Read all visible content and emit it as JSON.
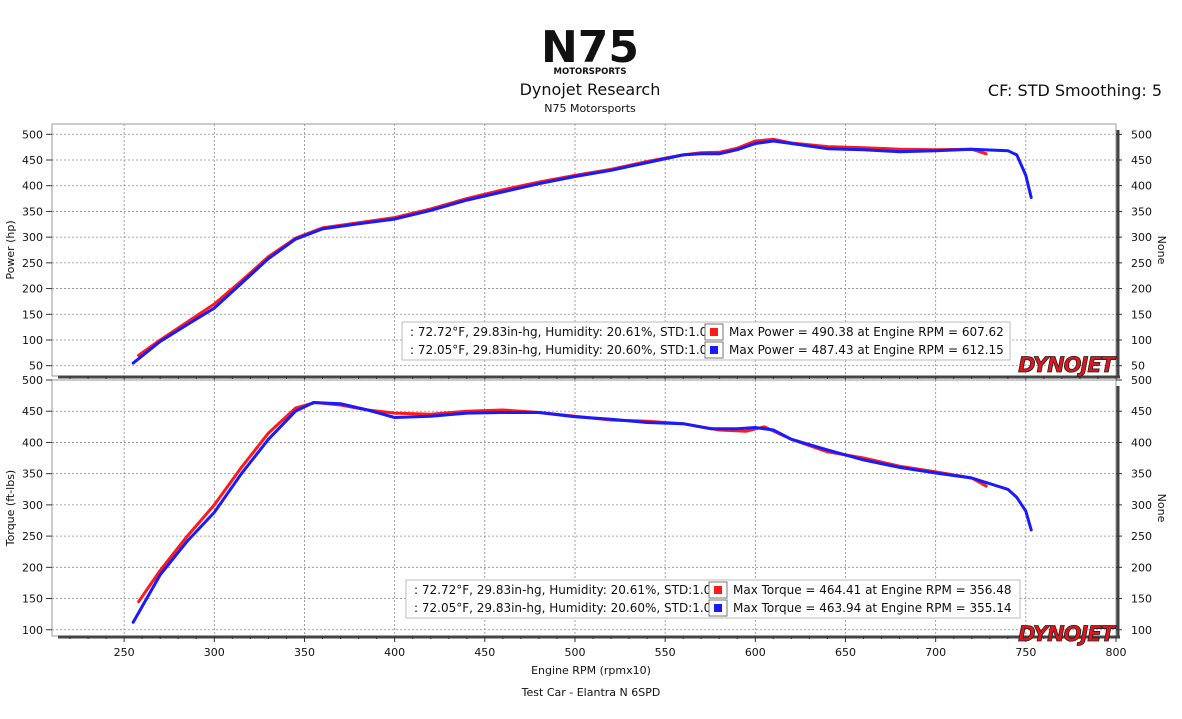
{
  "header": {
    "logo_text": "N75",
    "logo_subtext": "MOTORSPORTS",
    "company": "Dynojet Research",
    "shop": "N75 Motorsports",
    "correction": "CF: STD Smoothing: 5"
  },
  "footer": {
    "xlabel": "Engine RPM (rpmx10)",
    "vehicle": "Test Car - Elantra N 6SPD"
  },
  "colors": {
    "run1": "#ff1a1a",
    "run2": "#1a1aff",
    "watermark": "#e0141a"
  },
  "chart_data": [
    {
      "type": "line",
      "title": "",
      "xlabel": "Engine RPM (rpmx10)",
      "ylabel": "Power (hp)",
      "ylabel_right": "None",
      "xlim": [
        210,
        800
      ],
      "ylim": [
        30,
        520
      ],
      "yticks": [
        50,
        100,
        150,
        200,
        250,
        300,
        350,
        400,
        450,
        500
      ],
      "grid": true,
      "watermark": "DYNOJET",
      "legend": [
        {
          "conditions": ": 72.72°F, 29.83in-hg, Humidity: 20.61%, STD:1.00",
          "summary": "Max Power = 490.38 at Engine RPM = 607.62",
          "color": "#ff1a1a"
        },
        {
          "conditions": ": 72.05°F, 29.83in-hg, Humidity: 20.60%, STD:1.00",
          "summary": "Max Power = 487.43 at Engine RPM = 612.15",
          "color": "#1a1aff"
        }
      ],
      "series": [
        {
          "color": "#ff1a1a",
          "x": [
            258,
            270,
            285,
            300,
            315,
            330,
            345,
            360,
            380,
            400,
            420,
            440,
            460,
            480,
            500,
            520,
            540,
            560,
            570,
            580,
            590,
            600,
            610,
            620,
            640,
            660,
            680,
            700,
            720,
            728
          ],
          "y": [
            70,
            100,
            135,
            170,
            215,
            262,
            298,
            318,
            328,
            338,
            355,
            375,
            392,
            407,
            420,
            432,
            447,
            460,
            464,
            465,
            473,
            487,
            490,
            483,
            476,
            474,
            471,
            470,
            471,
            462
          ]
        },
        {
          "color": "#1a1aff",
          "x": [
            255,
            270,
            285,
            300,
            315,
            330,
            345,
            360,
            380,
            400,
            420,
            440,
            460,
            480,
            500,
            520,
            540,
            560,
            570,
            580,
            590,
            600,
            610,
            620,
            640,
            660,
            680,
            700,
            720,
            740,
            745,
            750,
            753
          ],
          "y": [
            55,
            97,
            130,
            162,
            210,
            258,
            296,
            316,
            326,
            335,
            352,
            372,
            388,
            404,
            418,
            430,
            445,
            460,
            462,
            462,
            470,
            482,
            487,
            482,
            472,
            470,
            466,
            468,
            471,
            468,
            460,
            420,
            377
          ]
        }
      ]
    },
    {
      "type": "line",
      "title": "",
      "xlabel": "Engine RPM (rpmx10)",
      "ylabel": "Torque (ft-lbs)",
      "ylabel_right": "None",
      "xlim": [
        210,
        800
      ],
      "ylim": [
        90,
        500
      ],
      "xticks": [
        250,
        300,
        350,
        400,
        450,
        500,
        550,
        600,
        650,
        700,
        750,
        800
      ],
      "yticks": [
        100,
        150,
        200,
        250,
        300,
        350,
        400,
        450,
        500
      ],
      "grid": true,
      "watermark": "DYNOJET",
      "legend": [
        {
          "conditions": ": 72.72°F, 29.83in-hg, Humidity: 20.61%, STD:1.00",
          "summary": "Max Torque = 464.41 at Engine RPM = 356.48",
          "color": "#ff1a1a"
        },
        {
          "conditions": ": 72.05°F, 29.83in-hg, Humidity: 20.60%, STD:1.00",
          "summary": "Max Torque = 463.94 at Engine RPM = 355.14",
          "color": "#1a1aff"
        }
      ],
      "series": [
        {
          "color": "#ff1a1a",
          "x": [
            258,
            270,
            285,
            300,
            315,
            330,
            345,
            356,
            370,
            385,
            400,
            420,
            440,
            460,
            480,
            500,
            520,
            540,
            560,
            580,
            595,
            605,
            620,
            640,
            660,
            680,
            700,
            720,
            728
          ],
          "y": [
            145,
            195,
            250,
            300,
            360,
            415,
            455,
            464,
            460,
            452,
            447,
            445,
            450,
            452,
            448,
            442,
            436,
            434,
            430,
            420,
            418,
            425,
            405,
            385,
            375,
            362,
            353,
            343,
            330
          ]
        },
        {
          "color": "#1a1aff",
          "x": [
            255,
            270,
            285,
            300,
            315,
            330,
            345,
            355,
            370,
            385,
            400,
            420,
            440,
            460,
            480,
            500,
            520,
            540,
            560,
            575,
            590,
            600,
            610,
            620,
            640,
            660,
            680,
            700,
            720,
            740,
            745,
            750,
            753
          ],
          "y": [
            112,
            188,
            242,
            288,
            350,
            405,
            450,
            464,
            462,
            452,
            440,
            442,
            447,
            448,
            448,
            441,
            437,
            432,
            430,
            422,
            422,
            424,
            420,
            405,
            388,
            372,
            360,
            351,
            343,
            325,
            312,
            290,
            260
          ]
        }
      ]
    }
  ]
}
